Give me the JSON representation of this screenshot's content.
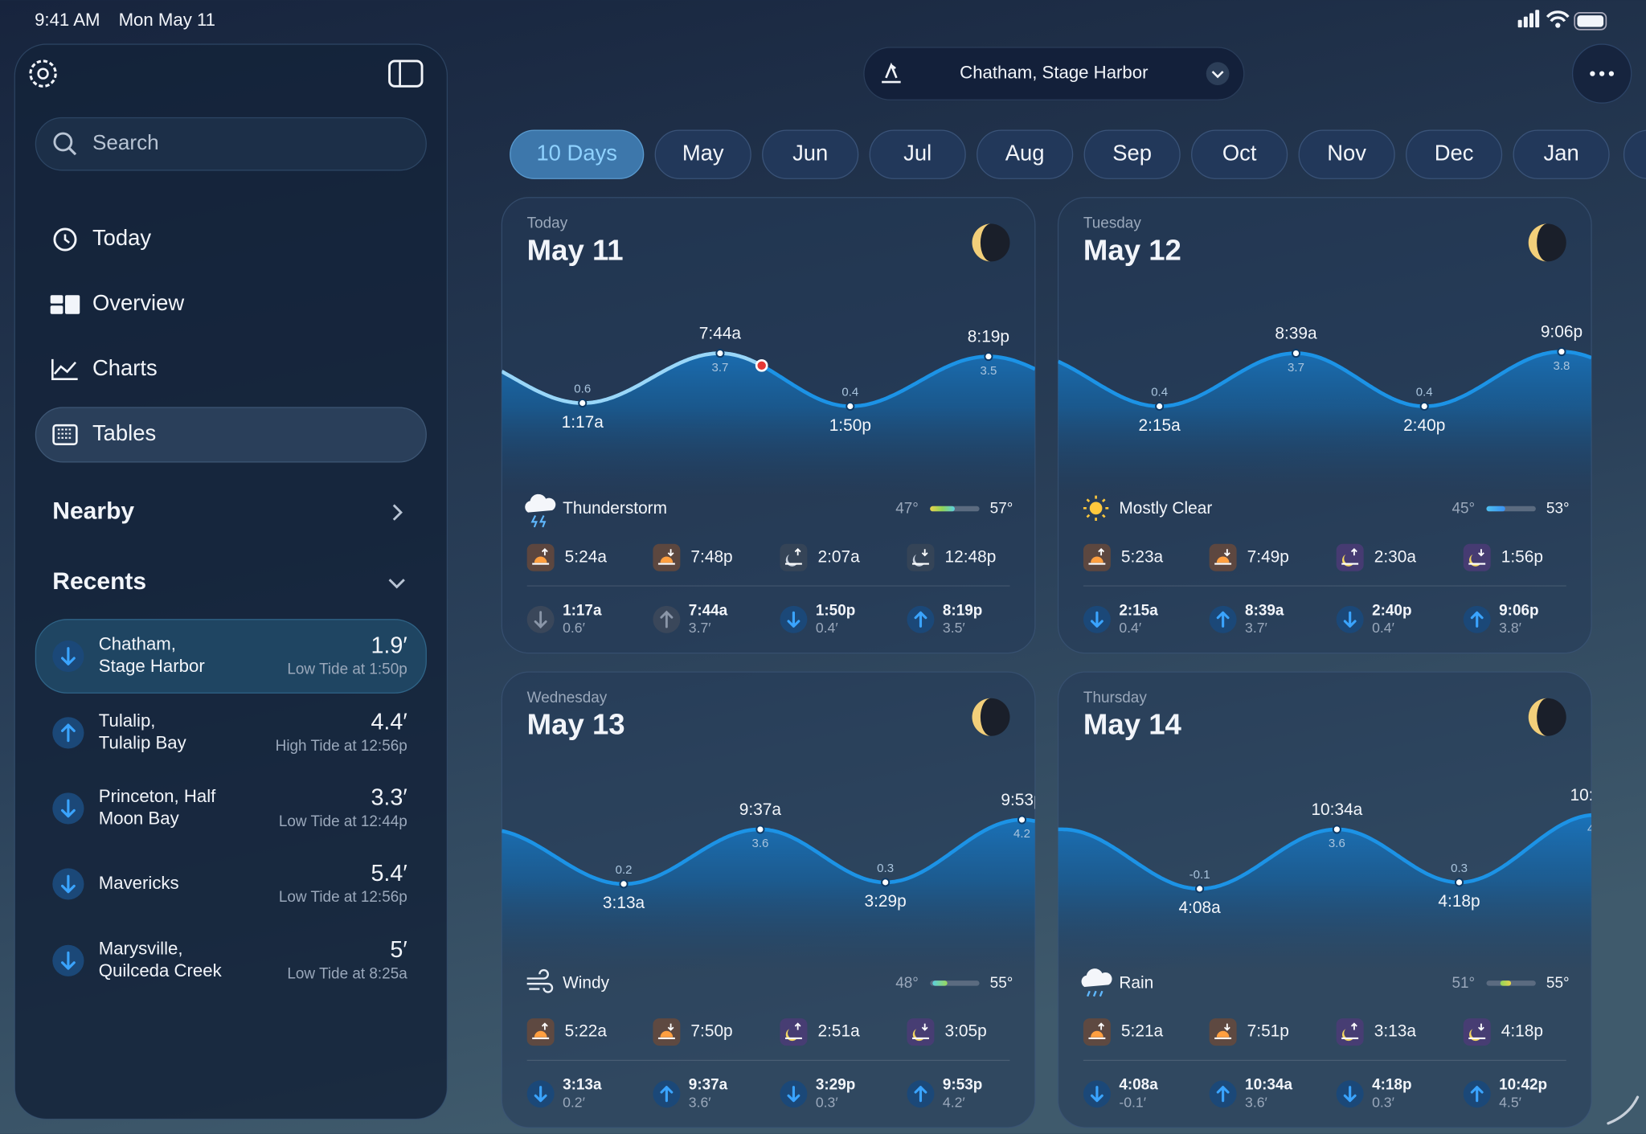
{
  "status": {
    "time": "9:41 AM",
    "date": "Mon May 11"
  },
  "sidebar": {
    "search": "Search",
    "nav": [
      "Today",
      "Overview",
      "Charts",
      "Tables"
    ],
    "nearby": "Nearby",
    "recents_title": "Recents",
    "recents": [
      {
        "name": [
          "Chatham,",
          "Stage Harbor"
        ],
        "height": "1.9′",
        "detail": "Low Tide at 1:50p",
        "direction": "down"
      },
      {
        "name": [
          "Tulalip,",
          "Tulalip Bay"
        ],
        "height": "4.4′",
        "detail": "High Tide at 12:56p",
        "direction": "up"
      },
      {
        "name": [
          "Princeton, Half",
          "Moon Bay"
        ],
        "height": "3.3′",
        "detail": "Low Tide at 12:44p",
        "direction": "down"
      },
      {
        "name": [
          "Mavericks"
        ],
        "height": "5.4′",
        "detail": "Low Tide at 12:56p",
        "direction": "down"
      },
      {
        "name": [
          "Marysville,",
          "Quilceda Creek"
        ],
        "height": "5′",
        "detail": "Low Tide at 8:25a",
        "direction": "down"
      }
    ]
  },
  "location": "Chatham, Stage Harbor",
  "tabs": [
    "10 Days",
    "May",
    "Jun",
    "Jul",
    "Aug",
    "Sep",
    "Oct",
    "Nov",
    "Dec",
    "Jan"
  ],
  "days": [
    {
      "day": "Today",
      "date": "May 11",
      "weather": "Thunderstorm",
      "icon": "storm",
      "low": "47°",
      "high": "57°",
      "sun_moon": [
        "5:24a",
        "7:48p",
        "2:07a",
        "12:48p"
      ],
      "tides": [
        {
          "time": "1:17a",
          "height": 0.6,
          "level": "0.6′"
        },
        {
          "time": "7:44a",
          "height": 3.7,
          "level": "3.7′"
        },
        {
          "time": "1:50p",
          "height": 0.4,
          "level": "0.4′"
        },
        {
          "time": "8:19p",
          "height": 3.5,
          "level": "3.5′"
        }
      ]
    },
    {
      "day": "Tuesday",
      "date": "May 12",
      "weather": "Mostly Clear",
      "icon": "sun",
      "low": "45°",
      "high": "53°",
      "sun_moon": [
        "5:23a",
        "7:49p",
        "2:30a",
        "1:56p"
      ],
      "tides": [
        {
          "time": "2:15a",
          "height": 0.4,
          "level": "0.4′"
        },
        {
          "time": "8:39a",
          "height": 3.7,
          "level": "3.7′"
        },
        {
          "time": "2:40p",
          "height": 0.4,
          "level": "0.4′"
        },
        {
          "time": "9:06p",
          "height": 3.8,
          "level": "3.8′"
        }
      ]
    },
    {
      "day": "Wednesday",
      "date": "May 13",
      "weather": "Windy",
      "icon": "wind",
      "low": "48°",
      "high": "55°",
      "sun_moon": [
        "5:22a",
        "7:50p",
        "2:51a",
        "3:05p"
      ],
      "tides": [
        {
          "time": "3:13a",
          "height": 0.2,
          "level": "0.2′"
        },
        {
          "time": "9:37a",
          "height": 3.6,
          "level": "3.6′"
        },
        {
          "time": "3:29p",
          "height": 0.3,
          "level": "0.3′"
        },
        {
          "time": "9:53p",
          "height": 4.2,
          "level": "4.2′"
        }
      ]
    },
    {
      "day": "Thursday",
      "date": "May 14",
      "weather": "Rain",
      "icon": "rain",
      "low": "51°",
      "high": "55°",
      "sun_moon": [
        "5:21a",
        "7:51p",
        "3:13a",
        "4:18p"
      ],
      "tides": [
        {
          "time": "4:08a",
          "height": -0.1,
          "level": "-0.1′"
        },
        {
          "time": "10:34a",
          "height": 3.6,
          "level": "3.6′"
        },
        {
          "time": "4:18p",
          "height": 0.3,
          "level": "0.3′"
        },
        {
          "time": "10:42p",
          "height": 4.5,
          "level": "4.5′"
        }
      ]
    }
  ]
}
